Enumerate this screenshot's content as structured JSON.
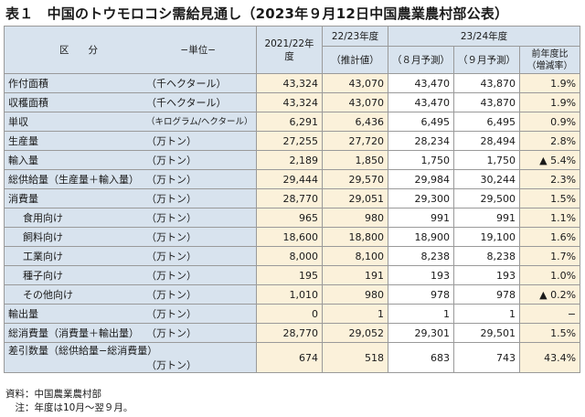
{
  "title": "表１　中国のトウモロコシ需給見通し（2023年９月12日中国農業農村部公表）",
  "header": {
    "kubun": "区　　分",
    "unit_label": "−単位−",
    "col_2122": "2021/22年度",
    "group_2223": "22/23年度",
    "group_2324": "23/24年度",
    "sub_2223": "（推計値）",
    "sub_aug": "（８月予測）",
    "sub_sep": "（９月予測）",
    "sub_yoy": "前年度比（増減率）"
  },
  "rows": [
    {
      "item": "作付面積",
      "unit": "（千ヘクタール）",
      "v1": "43,324",
      "v2": "43,070",
      "v3": "43,470",
      "v4": "43,870",
      "v5": "1.9%"
    },
    {
      "item": "収穫面積",
      "unit": "（千ヘクタール）",
      "v1": "43,324",
      "v2": "43,070",
      "v3": "43,470",
      "v4": "43,870",
      "v5": "1.9%"
    },
    {
      "item": "単収",
      "unit": "（キログラム/ヘクタール）",
      "v1": "6,291",
      "v2": "6,436",
      "v3": "6,495",
      "v4": "6,495",
      "v5": "0.9%"
    },
    {
      "item": "生産量",
      "unit": "（万トン）",
      "v1": "27,255",
      "v2": "27,720",
      "v3": "28,234",
      "v4": "28,494",
      "v5": "2.8%"
    },
    {
      "item": "輸入量",
      "unit": "（万トン）",
      "v1": "2,189",
      "v2": "1,850",
      "v3": "1,750",
      "v4": "1,750",
      "v5": "▲ 5.4%"
    },
    {
      "item": "総供給量（生産量＋輸入量）",
      "unit": "（万トン）",
      "v1": "29,444",
      "v2": "29,570",
      "v3": "29,984",
      "v4": "30,244",
      "v5": "2.3%"
    },
    {
      "item": "消費量",
      "unit": "（万トン）",
      "v1": "28,770",
      "v2": "29,051",
      "v3": "29,300",
      "v4": "29,500",
      "v5": "1.5%"
    },
    {
      "item": "食用向け",
      "unit": "（万トン）",
      "v1": "965",
      "v2": "980",
      "v3": "991",
      "v4": "991",
      "v5": "1.1%"
    },
    {
      "item": "飼料向け",
      "unit": "（万トン）",
      "v1": "18,600",
      "v2": "18,800",
      "v3": "18,900",
      "v4": "19,100",
      "v5": "1.6%"
    },
    {
      "item": "工業向け",
      "unit": "（万トン）",
      "v1": "8,000",
      "v2": "8,100",
      "v3": "8,238",
      "v4": "8,238",
      "v5": "1.7%"
    },
    {
      "item": "種子向け",
      "unit": "（万トン）",
      "v1": "195",
      "v2": "191",
      "v3": "193",
      "v4": "193",
      "v5": "1.0%"
    },
    {
      "item": "その他向け",
      "unit": "（万トン）",
      "v1": "1,010",
      "v2": "980",
      "v3": "978",
      "v4": "978",
      "v5": "▲ 0.2%"
    },
    {
      "item": "輸出量",
      "unit": "（万トン）",
      "v1": "0",
      "v2": "1",
      "v3": "1",
      "v4": "1",
      "v5": "−"
    },
    {
      "item": "総消費量（消費量＋輸出量）",
      "unit": "（万トン）",
      "v1": "28,770",
      "v2": "29,052",
      "v3": "29,301",
      "v4": "29,501",
      "v5": "1.5%"
    },
    {
      "item": "差引数量（総供給量−総消費量）",
      "unit": "（万トン）",
      "v1": "674",
      "v2": "518",
      "v3": "683",
      "v4": "743",
      "v5": "43.4%"
    }
  ],
  "notes": {
    "source": "資料：中国農業農村部",
    "note": "　注：年度は10月〜翌９月。"
  }
}
